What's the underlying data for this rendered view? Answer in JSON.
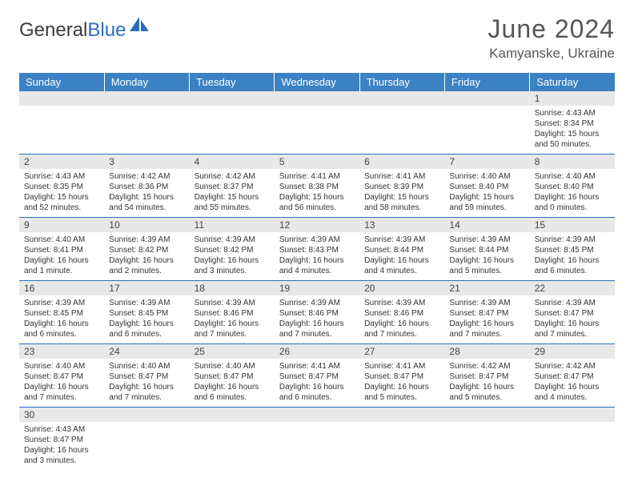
{
  "brand": {
    "part1": "General",
    "part2": "Blue"
  },
  "title": "June 2024",
  "location": "Kamyanske, Ukraine",
  "colors": {
    "header_bg": "#3a82c4",
    "header_text": "#ffffff",
    "daynum_bg": "#e8e8e8",
    "row_divider": "#2a6dbf",
    "text": "#333333",
    "brand_blue": "#2a6dbf"
  },
  "typography": {
    "title_fontsize": 32,
    "location_fontsize": 17,
    "dayheader_fontsize": 13,
    "daynum_fontsize": 12,
    "details_fontsize": 10
  },
  "day_headers": [
    "Sunday",
    "Monday",
    "Tuesday",
    "Wednesday",
    "Thursday",
    "Friday",
    "Saturday"
  ],
  "labels": {
    "sunrise": "Sunrise:",
    "sunset": "Sunset:",
    "daylight": "Daylight:"
  },
  "weeks": [
    [
      null,
      null,
      null,
      null,
      null,
      null,
      {
        "n": "1",
        "sunrise": "4:43 AM",
        "sunset": "8:34 PM",
        "daylight": "15 hours and 50 minutes."
      }
    ],
    [
      {
        "n": "2",
        "sunrise": "4:43 AM",
        "sunset": "8:35 PM",
        "daylight": "15 hours and 52 minutes."
      },
      {
        "n": "3",
        "sunrise": "4:42 AM",
        "sunset": "8:36 PM",
        "daylight": "15 hours and 54 minutes."
      },
      {
        "n": "4",
        "sunrise": "4:42 AM",
        "sunset": "8:37 PM",
        "daylight": "15 hours and 55 minutes."
      },
      {
        "n": "5",
        "sunrise": "4:41 AM",
        "sunset": "8:38 PM",
        "daylight": "15 hours and 56 minutes."
      },
      {
        "n": "6",
        "sunrise": "4:41 AM",
        "sunset": "8:39 PM",
        "daylight": "15 hours and 58 minutes."
      },
      {
        "n": "7",
        "sunrise": "4:40 AM",
        "sunset": "8:40 PM",
        "daylight": "15 hours and 59 minutes."
      },
      {
        "n": "8",
        "sunrise": "4:40 AM",
        "sunset": "8:40 PM",
        "daylight": "16 hours and 0 minutes."
      }
    ],
    [
      {
        "n": "9",
        "sunrise": "4:40 AM",
        "sunset": "8:41 PM",
        "daylight": "16 hours and 1 minute."
      },
      {
        "n": "10",
        "sunrise": "4:39 AM",
        "sunset": "8:42 PM",
        "daylight": "16 hours and 2 minutes."
      },
      {
        "n": "11",
        "sunrise": "4:39 AM",
        "sunset": "8:42 PM",
        "daylight": "16 hours and 3 minutes."
      },
      {
        "n": "12",
        "sunrise": "4:39 AM",
        "sunset": "8:43 PM",
        "daylight": "16 hours and 4 minutes."
      },
      {
        "n": "13",
        "sunrise": "4:39 AM",
        "sunset": "8:44 PM",
        "daylight": "16 hours and 4 minutes."
      },
      {
        "n": "14",
        "sunrise": "4:39 AM",
        "sunset": "8:44 PM",
        "daylight": "16 hours and 5 minutes."
      },
      {
        "n": "15",
        "sunrise": "4:39 AM",
        "sunset": "8:45 PM",
        "daylight": "16 hours and 6 minutes."
      }
    ],
    [
      {
        "n": "16",
        "sunrise": "4:39 AM",
        "sunset": "8:45 PM",
        "daylight": "16 hours and 6 minutes."
      },
      {
        "n": "17",
        "sunrise": "4:39 AM",
        "sunset": "8:45 PM",
        "daylight": "16 hours and 6 minutes."
      },
      {
        "n": "18",
        "sunrise": "4:39 AM",
        "sunset": "8:46 PM",
        "daylight": "16 hours and 7 minutes."
      },
      {
        "n": "19",
        "sunrise": "4:39 AM",
        "sunset": "8:46 PM",
        "daylight": "16 hours and 7 minutes."
      },
      {
        "n": "20",
        "sunrise": "4:39 AM",
        "sunset": "8:46 PM",
        "daylight": "16 hours and 7 minutes."
      },
      {
        "n": "21",
        "sunrise": "4:39 AM",
        "sunset": "8:47 PM",
        "daylight": "16 hours and 7 minutes."
      },
      {
        "n": "22",
        "sunrise": "4:39 AM",
        "sunset": "8:47 PM",
        "daylight": "16 hours and 7 minutes."
      }
    ],
    [
      {
        "n": "23",
        "sunrise": "4:40 AM",
        "sunset": "8:47 PM",
        "daylight": "16 hours and 7 minutes."
      },
      {
        "n": "24",
        "sunrise": "4:40 AM",
        "sunset": "8:47 PM",
        "daylight": "16 hours and 7 minutes."
      },
      {
        "n": "25",
        "sunrise": "4:40 AM",
        "sunset": "8:47 PM",
        "daylight": "16 hours and 6 minutes."
      },
      {
        "n": "26",
        "sunrise": "4:41 AM",
        "sunset": "8:47 PM",
        "daylight": "16 hours and 6 minutes."
      },
      {
        "n": "27",
        "sunrise": "4:41 AM",
        "sunset": "8:47 PM",
        "daylight": "16 hours and 5 minutes."
      },
      {
        "n": "28",
        "sunrise": "4:42 AM",
        "sunset": "8:47 PM",
        "daylight": "16 hours and 5 minutes."
      },
      {
        "n": "29",
        "sunrise": "4:42 AM",
        "sunset": "8:47 PM",
        "daylight": "16 hours and 4 minutes."
      }
    ],
    [
      {
        "n": "30",
        "sunrise": "4:43 AM",
        "sunset": "8:47 PM",
        "daylight": "16 hours and 3 minutes."
      },
      null,
      null,
      null,
      null,
      null,
      null
    ]
  ]
}
